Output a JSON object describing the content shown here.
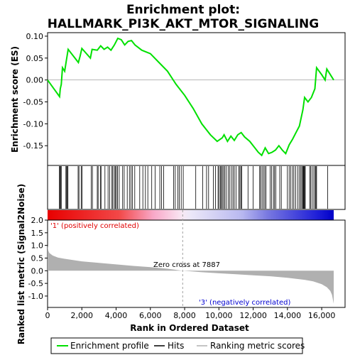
{
  "title_line1": "Enrichment plot:",
  "title_line2": "HALLMARK_PI3K_AKT_MTOR_SIGNALING",
  "colors": {
    "profile": "#00e000",
    "hits": "#000000",
    "metric_fill": "#b0b0b0",
    "positive_label": "#e00000",
    "negative_label": "#0000d0",
    "zero_line": "#a0a0a0"
  },
  "chart_data": {
    "type": "line",
    "n_genes": 16700,
    "zero_cross": 7887,
    "top_panel": {
      "ylabel": "Enrichment score (ES)",
      "ylim": [
        -0.195,
        0.108
      ],
      "yticks": [
        0.1,
        0.05,
        0.0,
        -0.05,
        -0.1,
        -0.15
      ],
      "ytick_labels": [
        "0.10",
        "0.05",
        "0.00",
        "-0.05",
        "-0.10",
        "-0.15"
      ],
      "es_profile": [
        [
          0,
          0.0
        ],
        [
          700,
          -0.038
        ],
        [
          740,
          -0.02
        ],
        [
          800,
          -0.01
        ],
        [
          870,
          0.028
        ],
        [
          1000,
          0.02
        ],
        [
          1100,
          0.045
        ],
        [
          1200,
          0.07
        ],
        [
          1800,
          0.04
        ],
        [
          1900,
          0.055
        ],
        [
          2000,
          0.072
        ],
        [
          2500,
          0.05
        ],
        [
          2600,
          0.07
        ],
        [
          2900,
          0.068
        ],
        [
          3100,
          0.078
        ],
        [
          3300,
          0.07
        ],
        [
          3500,
          0.075
        ],
        [
          3700,
          0.068
        ],
        [
          3900,
          0.08
        ],
        [
          4100,
          0.095
        ],
        [
          4300,
          0.092
        ],
        [
          4500,
          0.08
        ],
        [
          4700,
          0.088
        ],
        [
          4900,
          0.09
        ],
        [
          5100,
          0.08
        ],
        [
          5500,
          0.068
        ],
        [
          6000,
          0.06
        ],
        [
          6500,
          0.04
        ],
        [
          7000,
          0.02
        ],
        [
          7500,
          -0.01
        ],
        [
          8000,
          -0.035
        ],
        [
          8500,
          -0.065
        ],
        [
          9000,
          -0.1
        ],
        [
          9500,
          -0.125
        ],
        [
          9900,
          -0.14
        ],
        [
          10200,
          -0.132
        ],
        [
          10300,
          -0.125
        ],
        [
          10500,
          -0.14
        ],
        [
          10700,
          -0.128
        ],
        [
          10900,
          -0.138
        ],
        [
          11100,
          -0.125
        ],
        [
          11300,
          -0.12
        ],
        [
          11500,
          -0.13
        ],
        [
          11800,
          -0.14
        ],
        [
          12000,
          -0.15
        ],
        [
          12300,
          -0.165
        ],
        [
          12500,
          -0.172
        ],
        [
          12700,
          -0.155
        ],
        [
          12900,
          -0.168
        ],
        [
          13100,
          -0.165
        ],
        [
          13300,
          -0.16
        ],
        [
          13500,
          -0.15
        ],
        [
          13700,
          -0.16
        ],
        [
          13900,
          -0.168
        ],
        [
          14100,
          -0.148
        ],
        [
          14300,
          -0.135
        ],
        [
          14500,
          -0.12
        ],
        [
          14700,
          -0.105
        ],
        [
          14900,
          -0.068
        ],
        [
          15000,
          -0.04
        ],
        [
          15200,
          -0.05
        ],
        [
          15400,
          -0.04
        ],
        [
          15600,
          -0.02
        ],
        [
          15700,
          0.028
        ],
        [
          16000,
          0.012
        ],
        [
          16200,
          0.0
        ],
        [
          16300,
          0.025
        ],
        [
          16700,
          0.0
        ]
      ]
    },
    "hits_panel": {
      "hit_positions": [
        690,
        720,
        760,
        800,
        1070,
        1110,
        1150,
        1190,
        1780,
        1830,
        1960,
        2020,
        2550,
        2620,
        2900,
        2950,
        3080,
        3120,
        3350,
        3530,
        3620,
        3760,
        3810,
        3900,
        3960,
        4020,
        4080,
        4180,
        4380,
        4470,
        4650,
        4780,
        4870,
        4950,
        5090,
        5380,
        5560,
        5710,
        5850,
        6080,
        6280,
        6550,
        6650,
        6780,
        7350,
        7450,
        7610,
        7690,
        7800,
        7920,
        8650,
        9050,
        9280,
        9400,
        9680,
        9800,
        9950,
        10010,
        10090,
        10140,
        10200,
        10270,
        10340,
        10420,
        10540,
        10620,
        10730,
        10820,
        10900,
        11000,
        11150,
        11220,
        11280,
        11330,
        11700,
        12000,
        12380,
        12430,
        12520,
        12600,
        12680,
        12750,
        12990,
        13080,
        13180,
        13250,
        13320,
        13550,
        13640,
        14000,
        14100,
        14190,
        14300,
        14380,
        14480,
        14600,
        14700,
        14780,
        14840,
        14900,
        14930,
        14960,
        15000,
        15040,
        15300,
        15360,
        15450,
        15540,
        15620,
        15660,
        15700,
        16350
      ]
    },
    "metric_panel": {
      "ylabel": "Ranked list metric (Signal2Noise)",
      "xlabel": "Rank in Ordered Dataset",
      "ylim": [
        -1.45,
        2.0
      ],
      "yticks": [
        2.0,
        1.5,
        1.0,
        0.5,
        0.0,
        -0.5,
        -1.0
      ],
      "ytick_labels": [
        "2.0",
        "1.5",
        "1.0",
        "0.5",
        "0.0",
        "-0.5",
        "-1.0"
      ],
      "xticks": [
        0,
        2000,
        4000,
        6000,
        8000,
        10000,
        12000,
        14000,
        16000
      ],
      "xtick_labels": [
        "0",
        "2,000",
        "4,000",
        "6,000",
        "8,000",
        "10,000",
        "12,000",
        "14,000",
        "16,000"
      ],
      "metric_curve": [
        [
          0,
          1.0
        ],
        [
          40,
          0.8
        ],
        [
          100,
          0.7
        ],
        [
          300,
          0.6
        ],
        [
          600,
          0.52
        ],
        [
          1000,
          0.47
        ],
        [
          2000,
          0.37
        ],
        [
          3000,
          0.31
        ],
        [
          4000,
          0.25
        ],
        [
          5000,
          0.19
        ],
        [
          6000,
          0.14
        ],
        [
          7000,
          0.08
        ],
        [
          7887,
          0.0
        ],
        [
          9000,
          -0.06
        ],
        [
          10000,
          -0.1
        ],
        [
          11000,
          -0.14
        ],
        [
          12000,
          -0.18
        ],
        [
          13000,
          -0.22
        ],
        [
          14000,
          -0.28
        ],
        [
          15000,
          -0.36
        ],
        [
          15500,
          -0.42
        ],
        [
          16000,
          -0.53
        ],
        [
          16300,
          -0.65
        ],
        [
          16500,
          -0.8
        ],
        [
          16600,
          -0.95
        ],
        [
          16700,
          -1.3
        ]
      ],
      "positive_label": "'1' (positively correlated)",
      "negative_label": "'3' (negatively correlated)",
      "zero_cross_label": "Zero cross at 7887"
    },
    "legend": [
      {
        "label": "Enrichment profile",
        "style": "green-line"
      },
      {
        "label": "Hits",
        "style": "black-line"
      },
      {
        "label": "Ranking metric scores",
        "style": "gray-line"
      }
    ]
  }
}
